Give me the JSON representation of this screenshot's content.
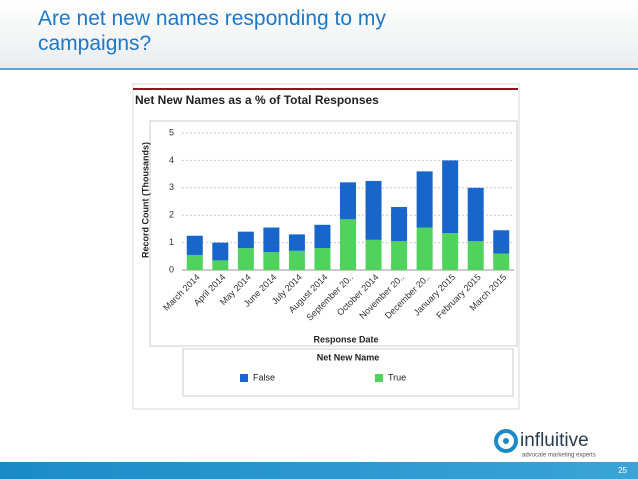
{
  "slide_title": "Are net new names responding to my campaigns?",
  "logo": {
    "name": "influitive",
    "tagline": "advocate marketing experts"
  },
  "page_number": "25",
  "chart_data": {
    "type": "stacked-bar",
    "title": "Net New Names as a % of Total Responses",
    "x_label": "Response Date",
    "y_label": "Record Count (Thousands)",
    "legend_title": "Net New Name",
    "categories": [
      "March 2014",
      "April 2014",
      "May 2014",
      "June 2014",
      "July 2014",
      "August 2014",
      "September 20..",
      "October 2014",
      "November 20..",
      "December 20..",
      "January 2015",
      "February 2015",
      "March 2015"
    ],
    "series": [
      {
        "name": "True",
        "color": "#4fd35c",
        "values": [
          0.55,
          0.35,
          0.8,
          0.65,
          0.7,
          0.8,
          1.85,
          1.1,
          1.05,
          1.55,
          1.35,
          1.05,
          0.6
        ]
      },
      {
        "name": "False",
        "color": "#1866c9",
        "values": [
          0.7,
          0.65,
          0.6,
          0.9,
          0.6,
          0.85,
          1.35,
          2.15,
          1.25,
          2.05,
          2.65,
          1.95,
          0.85
        ]
      }
    ],
    "ylim": [
      0,
      5
    ],
    "yticks": [
      0,
      1,
      2,
      3,
      4,
      5
    ],
    "grid": true
  }
}
